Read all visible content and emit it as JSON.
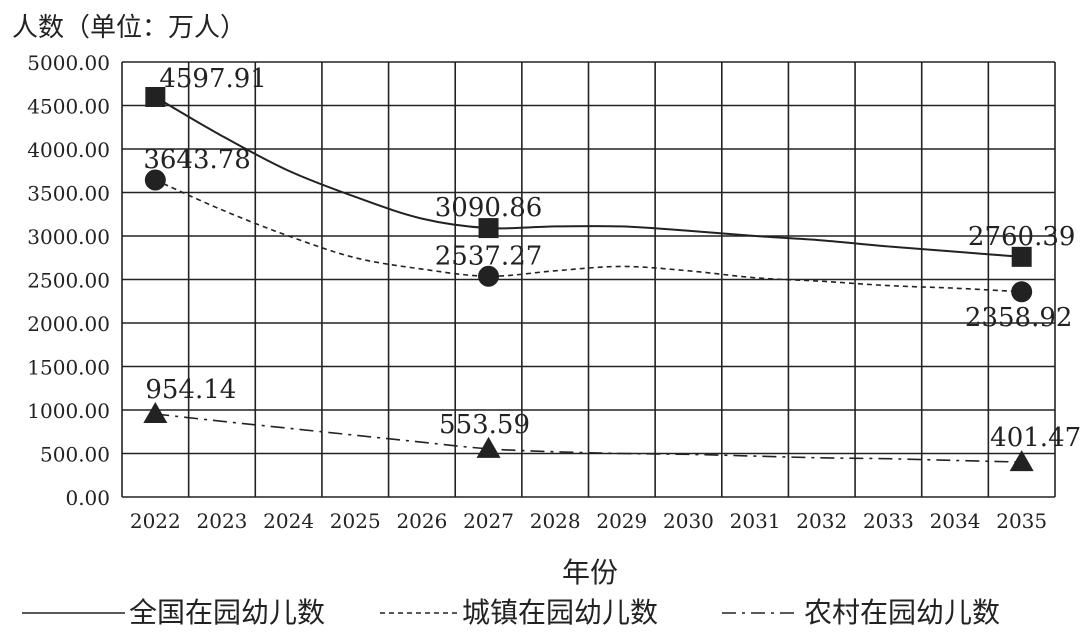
{
  "chart_data": {
    "type": "line",
    "ylabel": "人数（单位：万人）",
    "xlabel": "年份",
    "ylim": [
      0,
      5000
    ],
    "yticks": [
      "0.00",
      "500.00",
      "1000.00",
      "1500.00",
      "2000.00",
      "2500.00",
      "3000.00",
      "3500.00",
      "4000.00",
      "4500.00",
      "5000.00"
    ],
    "categories": [
      "2022",
      "2023",
      "2024",
      "2025",
      "2026",
      "2027",
      "2028",
      "2029",
      "2030",
      "2031",
      "2032",
      "2033",
      "2034",
      "2035"
    ],
    "grid": true,
    "legend_position": "bottom",
    "series": [
      {
        "name": "全国在园幼儿数",
        "style": "solid",
        "marker": "square",
        "values": [
          4597.91,
          4150,
          3750,
          3450,
          3200,
          3090.86,
          3110,
          3110,
          3060,
          3000,
          2950,
          2880,
          2820,
          2760.39
        ],
        "labels": [
          {
            "index": 0,
            "text": "4597.91"
          },
          {
            "index": 5,
            "text": "3090.86"
          },
          {
            "index": 13,
            "text": "2760.39"
          }
        ]
      },
      {
        "name": "城镇在园幼儿数",
        "style": "dashed",
        "marker": "circle",
        "values": [
          3643.78,
          3300,
          3000,
          2750,
          2620,
          2537.27,
          2600,
          2650,
          2600,
          2520,
          2480,
          2430,
          2400,
          2358.92
        ],
        "labels": [
          {
            "index": 0,
            "text": "3643.78"
          },
          {
            "index": 5,
            "text": "2537.27"
          },
          {
            "index": 13,
            "text": "2358.92"
          }
        ]
      },
      {
        "name": "农村在园幼儿数",
        "style": "dashdot",
        "marker": "triangle",
        "values": [
          954.14,
          870,
          790,
          710,
          630,
          553.59,
          520,
          500,
          490,
          470,
          450,
          440,
          420,
          401.47
        ],
        "labels": [
          {
            "index": 0,
            "text": "954.14"
          },
          {
            "index": 5,
            "text": "553.59"
          },
          {
            "index": 13,
            "text": "401.47"
          }
        ]
      }
    ]
  },
  "colors": {
    "ink": "#222222",
    "grid": "#222222",
    "background": "#ffffff"
  }
}
